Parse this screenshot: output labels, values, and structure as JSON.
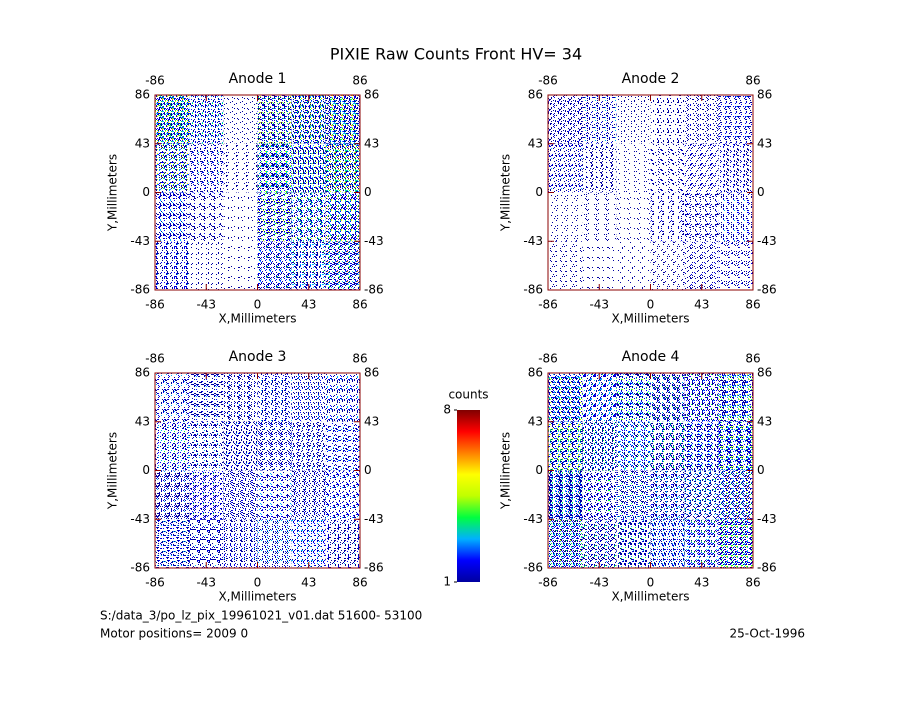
{
  "chart_data": {
    "type": "heatmap",
    "title": "PIXIE Raw Counts Front HV= 34",
    "axis_color": "#8b0000",
    "colorbar": {
      "label": "counts",
      "clim": [
        1,
        8
      ],
      "ticks": [
        1,
        8
      ],
      "colormap": [
        "#0000a0",
        "#0000ff",
        "#00b0ff",
        "#00ff40",
        "#c0ff00",
        "#ffff00",
        "#ff8000",
        "#ff0000",
        "#800000"
      ]
    },
    "panels": [
      {
        "title": "Anode 1",
        "xlabel": "X,Millimeters",
        "ylabel": "Y,Millimeters",
        "xlim": [
          -86,
          86
        ],
        "ylim": [
          -86,
          86
        ],
        "xticks": [
          -86,
          -43,
          0,
          43,
          86
        ],
        "yticks": [
          -86,
          -43,
          0,
          43,
          86
        ],
        "values": [
          [
            4,
            2,
            0.5,
            3,
            3,
            4
          ],
          [
            3,
            1.5,
            0.5,
            3,
            3,
            4
          ],
          [
            2,
            1,
            0.3,
            2.5,
            2.5,
            3
          ],
          [
            1.5,
            0.5,
            0.3,
            2,
            2,
            3
          ]
        ]
      },
      {
        "title": "Anode 2",
        "xlabel": "X,Millimeters",
        "ylabel": "Y,Millimeters",
        "xlim": [
          -86,
          86
        ],
        "ylim": [
          -86,
          86
        ],
        "xticks": [
          -86,
          -43,
          0,
          43,
          86
        ],
        "yticks": [
          -86,
          -43,
          0,
          43,
          86
        ],
        "values": [
          [
            1.5,
            1.2,
            0.5,
            0.8,
            1,
            1.2
          ],
          [
            1.2,
            1,
            0.4,
            0.8,
            1,
            1.2
          ],
          [
            0.5,
            0.5,
            0.3,
            0.8,
            1.2,
            1.2
          ],
          [
            0.5,
            0.3,
            0.3,
            0.6,
            1,
            1
          ]
        ]
      },
      {
        "title": "Anode 3",
        "xlabel": "X,Millimeters",
        "ylabel": "Y,Millimeters",
        "xlim": [
          -86,
          86
        ],
        "ylim": [
          -86,
          86
        ],
        "xticks": [
          -86,
          -43,
          0,
          43,
          86
        ],
        "yticks": [
          -86,
          -43,
          0,
          43,
          86
        ],
        "values": [
          [
            1.5,
            1.5,
            1.5,
            1.5,
            1.5,
            1.5
          ],
          [
            1.5,
            1.5,
            1.5,
            1.5,
            1.5,
            1.5
          ],
          [
            2,
            1.5,
            1.5,
            1.5,
            1.5,
            1.5
          ],
          [
            2,
            1.5,
            1.5,
            1.5,
            1.5,
            1.5
          ]
        ]
      },
      {
        "title": "Anode 4",
        "xlabel": "X,Millimeters",
        "ylabel": "Y,Millimeters",
        "xlim": [
          -86,
          86
        ],
        "ylim": [
          -86,
          86
        ],
        "xticks": [
          -86,
          -43,
          0,
          43,
          86
        ],
        "yticks": [
          -86,
          -43,
          0,
          43,
          86
        ],
        "values": [
          [
            3,
            2,
            2,
            2,
            2,
            3
          ],
          [
            3,
            2,
            2,
            2,
            2,
            3
          ],
          [
            3,
            2,
            2,
            2,
            2,
            3
          ],
          [
            3,
            2,
            2,
            2,
            2,
            3
          ]
        ]
      }
    ]
  },
  "footer": {
    "file": "S:/data_3/po_lz_pix_19961021_v01.dat   51600- 53100",
    "motor": "Motor positions= 2009 0",
    "date": "25-Oct-1996"
  }
}
